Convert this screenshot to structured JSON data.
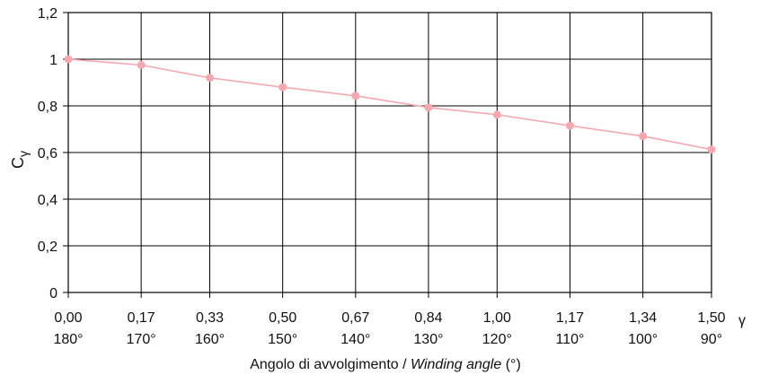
{
  "chart_data": {
    "type": "line",
    "title": "",
    "xlabel_parts": {
      "prefix": "Angolo di avvolgimento / ",
      "italic": "Winding angle",
      "suffix": " (°)"
    },
    "ylabel": {
      "main": "C",
      "subscript": "γ"
    },
    "x_secondary_label": "γ",
    "ylim": [
      0,
      1.2
    ],
    "y_ticks": [
      "0",
      "0,2",
      "0,4",
      "0,6",
      "0,8",
      "1",
      "1,2"
    ],
    "x": [
      0.0,
      0.17,
      0.33,
      0.5,
      0.67,
      0.84,
      1.0,
      1.17,
      1.34,
      1.5
    ],
    "x_tick_labels": [
      "0,00",
      "0,17",
      "0,33",
      "0,50",
      "0,67",
      "0,84",
      "1,00",
      "1,17",
      "1,34",
      "1,50"
    ],
    "x_tick_angles": [
      "180°",
      "170°",
      "160°",
      "150°",
      "140°",
      "130°",
      "120°",
      "110°",
      "100°",
      "90°"
    ],
    "series": [
      {
        "values": [
          1.0,
          0.975,
          0.92,
          0.88,
          0.843,
          0.793,
          0.762,
          0.715,
          0.67,
          0.613
        ]
      }
    ],
    "grid": true,
    "series_color": "#f6a8b0"
  }
}
